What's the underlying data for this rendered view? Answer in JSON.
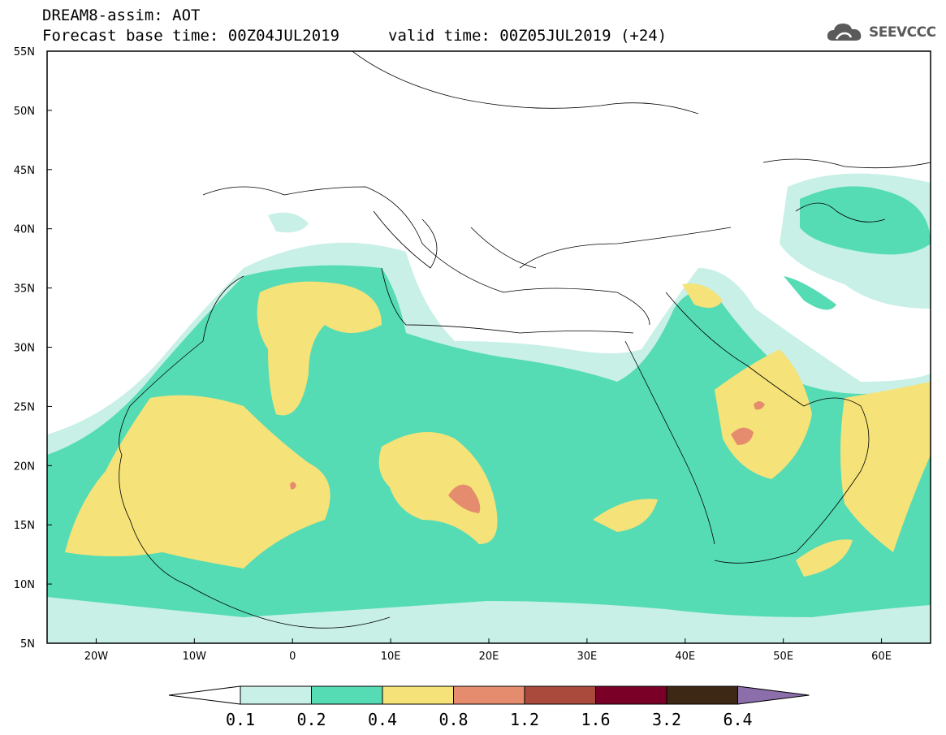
{
  "header": {
    "title_line1": "DREAM8-assim: AOT",
    "title_line2": "Forecast base time: 00Z04JUL2019",
    "valid_time": "valid time: 00Z05JUL2019 (+24)",
    "logo_text": "SEEVCCC"
  },
  "map": {
    "lat_labels": [
      "55N",
      "50N",
      "45N",
      "40N",
      "35N",
      "30N",
      "25N",
      "20N",
      "15N",
      "10N",
      "5N"
    ],
    "lon_labels": [
      "20W",
      "10W",
      "0",
      "10E",
      "20E",
      "30E",
      "40E",
      "50E",
      "60E"
    ],
    "lat_range": [
      5,
      55
    ],
    "lon_range": [
      -25,
      65
    ],
    "field": "AOT"
  },
  "colorbar": {
    "labels": [
      "0.1",
      "0.2",
      "0.4",
      "0.8",
      "1.2",
      "1.6",
      "3.2",
      "6.4"
    ],
    "colors": [
      "#ffffff",
      "#c8f0e6",
      "#55dcb4",
      "#f5e278",
      "#e68c6e",
      "#aa4a3c",
      "#7a0028",
      "#3c2814",
      "#8c6eaa"
    ]
  }
}
